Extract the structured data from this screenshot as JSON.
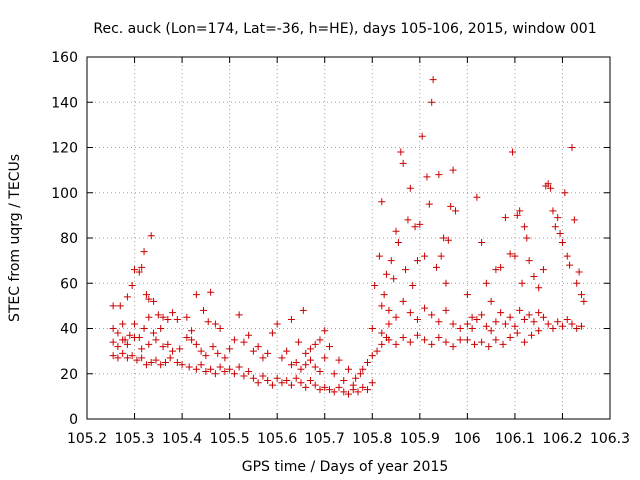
{
  "chart_data": {
    "type": "scatter",
    "title": "Rec. auck (Lon=174, Lat=-36, h=HE), days 105-106, 2015, window 001",
    "xlabel": "GPS time / Days of year 2015",
    "ylabel": "STEC from uqrg / TECUs",
    "xlim": [
      105.2,
      106.3
    ],
    "ylim": [
      0,
      160
    ],
    "xticks": [
      105.2,
      105.3,
      105.4,
      105.5,
      105.6,
      105.7,
      105.8,
      105.9,
      106.0,
      106.1,
      106.2,
      106.3
    ],
    "xtick_labels": [
      "105.2",
      "105.3",
      "105.4",
      "105.5",
      "105.6",
      "105.7",
      "105.8",
      "105.9",
      "106",
      "106.1",
      "106.2",
      "106.3"
    ],
    "yticks": [
      0,
      20,
      40,
      60,
      80,
      100,
      120,
      140,
      160
    ],
    "ytick_labels": [
      "0",
      "20",
      "40",
      "60",
      "80",
      "100",
      "120",
      "140",
      "160"
    ],
    "grid": true,
    "marker": "+",
    "marker_color": "#cc0000",
    "series": [
      {
        "points": [
          [
            105.255,
            50
          ],
          [
            105.27,
            50
          ],
          [
            105.285,
            54
          ],
          [
            105.295,
            59
          ],
          [
            105.3,
            66
          ],
          [
            105.31,
            65
          ],
          [
            105.315,
            67
          ],
          [
            105.32,
            74
          ],
          [
            105.325,
            55
          ],
          [
            105.33,
            53
          ],
          [
            105.335,
            81
          ],
          [
            105.34,
            52
          ],
          [
            105.35,
            46
          ],
          [
            105.36,
            45
          ],
          [
            105.255,
            40
          ],
          [
            105.265,
            38
          ],
          [
            105.275,
            42
          ],
          [
            105.28,
            35
          ],
          [
            105.29,
            37
          ],
          [
            105.3,
            42
          ],
          [
            105.31,
            36
          ],
          [
            105.32,
            40
          ],
          [
            105.33,
            45
          ],
          [
            105.34,
            38
          ],
          [
            105.355,
            40
          ],
          [
            105.37,
            44
          ],
          [
            105.38,
            47
          ],
          [
            105.39,
            44
          ],
          [
            105.255,
            34
          ],
          [
            105.265,
            32
          ],
          [
            105.275,
            35
          ],
          [
            105.285,
            33
          ],
          [
            105.3,
            36
          ],
          [
            105.315,
            31
          ],
          [
            105.33,
            33
          ],
          [
            105.345,
            35
          ],
          [
            105.36,
            32
          ],
          [
            105.37,
            33
          ],
          [
            105.38,
            30
          ],
          [
            105.395,
            31
          ],
          [
            105.41,
            36
          ],
          [
            105.42,
            39
          ],
          [
            105.255,
            28
          ],
          [
            105.265,
            27
          ],
          [
            105.275,
            29
          ],
          [
            105.285,
            27
          ],
          [
            105.295,
            28
          ],
          [
            105.305,
            26
          ],
          [
            105.315,
            27
          ],
          [
            105.325,
            24
          ],
          [
            105.335,
            25
          ],
          [
            105.345,
            26
          ],
          [
            105.355,
            24
          ],
          [
            105.365,
            25
          ],
          [
            105.375,
            27
          ],
          [
            105.39,
            25
          ],
          [
            105.4,
            24
          ],
          [
            105.415,
            23
          ],
          [
            105.43,
            22
          ],
          [
            105.44,
            24
          ],
          [
            105.45,
            21
          ],
          [
            105.46,
            22
          ],
          [
            105.47,
            20
          ],
          [
            105.41,
            45
          ],
          [
            105.43,
            55
          ],
          [
            105.445,
            48
          ],
          [
            105.455,
            43
          ],
          [
            105.46,
            56
          ],
          [
            105.47,
            42
          ],
          [
            105.48,
            40
          ],
          [
            105.42,
            35
          ],
          [
            105.43,
            33
          ],
          [
            105.44,
            30
          ],
          [
            105.45,
            28
          ],
          [
            105.465,
            32
          ],
          [
            105.475,
            29
          ],
          [
            105.49,
            27
          ],
          [
            105.48,
            23
          ],
          [
            105.49,
            21
          ],
          [
            105.5,
            22
          ],
          [
            105.51,
            20
          ],
          [
            105.52,
            23
          ],
          [
            105.53,
            19
          ],
          [
            105.54,
            21
          ],
          [
            105.5,
            31
          ],
          [
            105.51,
            35
          ],
          [
            105.52,
            46
          ],
          [
            105.53,
            34
          ],
          [
            105.54,
            37
          ],
          [
            105.55,
            30
          ],
          [
            105.56,
            32
          ],
          [
            105.55,
            18
          ],
          [
            105.56,
            16
          ],
          [
            105.57,
            19
          ],
          [
            105.58,
            17
          ],
          [
            105.59,
            15
          ],
          [
            105.6,
            18
          ],
          [
            105.61,
            16
          ],
          [
            105.57,
            27
          ],
          [
            105.58,
            29
          ],
          [
            105.59,
            38
          ],
          [
            105.6,
            42
          ],
          [
            105.61,
            27
          ],
          [
            105.62,
            30
          ],
          [
            105.63,
            24
          ],
          [
            105.62,
            17
          ],
          [
            105.63,
            15
          ],
          [
            105.64,
            18
          ],
          [
            105.65,
            16
          ],
          [
            105.66,
            14
          ],
          [
            105.67,
            17
          ],
          [
            105.68,
            15
          ],
          [
            105.63,
            44
          ],
          [
            105.645,
            34
          ],
          [
            105.655,
            48
          ],
          [
            105.66,
            29
          ],
          [
            105.67,
            31
          ],
          [
            105.68,
            33
          ],
          [
            105.69,
            35
          ],
          [
            105.64,
            25
          ],
          [
            105.65,
            22
          ],
          [
            105.66,
            24
          ],
          [
            105.67,
            26
          ],
          [
            105.68,
            23
          ],
          [
            105.69,
            21
          ],
          [
            105.7,
            27
          ],
          [
            105.7,
            39
          ],
          [
            105.71,
            32
          ],
          [
            105.72,
            20
          ],
          [
            105.73,
            26
          ],
          [
            105.74,
            17
          ],
          [
            105.75,
            22
          ],
          [
            105.76,
            15
          ],
          [
            105.69,
            13
          ],
          [
            105.7,
            14
          ],
          [
            105.71,
            13
          ],
          [
            105.72,
            12
          ],
          [
            105.73,
            14
          ],
          [
            105.74,
            12
          ],
          [
            105.75,
            11
          ],
          [
            105.76,
            13
          ],
          [
            105.77,
            12
          ],
          [
            105.78,
            14
          ],
          [
            105.79,
            13
          ],
          [
            105.8,
            16
          ],
          [
            105.765,
            18
          ],
          [
            105.775,
            20
          ],
          [
            105.78,
            22
          ],
          [
            105.79,
            25
          ],
          [
            105.8,
            28
          ],
          [
            105.81,
            30
          ],
          [
            105.82,
            33
          ],
          [
            105.83,
            36
          ],
          [
            105.8,
            40
          ],
          [
            105.805,
            59
          ],
          [
            105.815,
            72
          ],
          [
            105.82,
            96
          ],
          [
            105.825,
            55
          ],
          [
            105.83,
            64
          ],
          [
            105.835,
            42
          ],
          [
            105.84,
            70
          ],
          [
            105.845,
            62
          ],
          [
            105.85,
            83
          ],
          [
            105.855,
            78
          ],
          [
            105.86,
            118
          ],
          [
            105.865,
            113
          ],
          [
            105.87,
            66
          ],
          [
            105.875,
            88
          ],
          [
            105.88,
            102
          ],
          [
            105.885,
            59
          ],
          [
            105.89,
            85
          ],
          [
            105.895,
            70
          ],
          [
            105.9,
            86
          ],
          [
            105.905,
            125
          ],
          [
            105.91,
            72
          ],
          [
            105.915,
            107
          ],
          [
            105.92,
            95
          ],
          [
            105.925,
            140
          ],
          [
            105.928,
            150
          ],
          [
            105.935,
            67
          ],
          [
            105.94,
            108
          ],
          [
            105.945,
            72
          ],
          [
            105.95,
            80
          ],
          [
            105.955,
            60
          ],
          [
            105.96,
            79
          ],
          [
            105.965,
            94
          ],
          [
            105.97,
            110
          ],
          [
            105.975,
            92
          ],
          [
            105.82,
            50
          ],
          [
            105.835,
            48
          ],
          [
            105.85,
            45
          ],
          [
            105.865,
            52
          ],
          [
            105.88,
            47
          ],
          [
            105.895,
            44
          ],
          [
            105.91,
            49
          ],
          [
            105.925,
            46
          ],
          [
            105.94,
            43
          ],
          [
            105.955,
            48
          ],
          [
            105.97,
            42
          ],
          [
            105.985,
            40
          ],
          [
            105.82,
            38
          ],
          [
            105.835,
            35
          ],
          [
            105.85,
            33
          ],
          [
            105.865,
            36
          ],
          [
            105.88,
            34
          ],
          [
            105.895,
            37
          ],
          [
            105.91,
            35
          ],
          [
            105.925,
            33
          ],
          [
            105.94,
            36
          ],
          [
            105.955,
            34
          ],
          [
            105.97,
            32
          ],
          [
            105.985,
            35
          ],
          [
            106.0,
            55
          ],
          [
            106.01,
            45
          ],
          [
            106.02,
            98
          ],
          [
            106.03,
            78
          ],
          [
            106.04,
            60
          ],
          [
            106.05,
            52
          ],
          [
            106.06,
            66
          ],
          [
            106.07,
            67
          ],
          [
            106.08,
            89
          ],
          [
            106.09,
            73
          ],
          [
            106.095,
            118
          ],
          [
            106.1,
            72
          ],
          [
            106.105,
            90
          ],
          [
            106.11,
            92
          ],
          [
            106.115,
            60
          ],
          [
            106.12,
            85
          ],
          [
            106.125,
            80
          ],
          [
            106.13,
            70
          ],
          [
            106.14,
            63
          ],
          [
            106.15,
            58
          ],
          [
            106.16,
            66
          ],
          [
            106.165,
            103
          ],
          [
            106.17,
            104
          ],
          [
            106.175,
            102
          ],
          [
            106.18,
            92
          ],
          [
            106.185,
            85
          ],
          [
            106.19,
            89
          ],
          [
            106.195,
            82
          ],
          [
            106.2,
            78
          ],
          [
            106.205,
            100
          ],
          [
            106.21,
            72
          ],
          [
            106.215,
            68
          ],
          [
            106.22,
            120
          ],
          [
            106.225,
            88
          ],
          [
            106.23,
            60
          ],
          [
            106.235,
            65
          ],
          [
            106.24,
            55
          ],
          [
            106.245,
            52
          ],
          [
            106.0,
            42
          ],
          [
            106.01,
            40
          ],
          [
            106.02,
            44
          ],
          [
            106.03,
            46
          ],
          [
            106.04,
            41
          ],
          [
            106.05,
            39
          ],
          [
            106.06,
            43
          ],
          [
            106.07,
            47
          ],
          [
            106.08,
            42
          ],
          [
            106.09,
            45
          ],
          [
            106.1,
            41
          ],
          [
            106.11,
            48
          ],
          [
            106.12,
            44
          ],
          [
            106.13,
            46
          ],
          [
            106.14,
            43
          ],
          [
            106.15,
            47
          ],
          [
            106.16,
            45
          ],
          [
            106.17,
            42
          ],
          [
            106.18,
            40
          ],
          [
            106.19,
            43
          ],
          [
            106.2,
            41
          ],
          [
            106.21,
            44
          ],
          [
            106.22,
            42
          ],
          [
            106.23,
            40
          ],
          [
            106.24,
            41
          ],
          [
            106.0,
            35
          ],
          [
            106.015,
            33
          ],
          [
            106.03,
            34
          ],
          [
            106.045,
            32
          ],
          [
            106.06,
            35
          ],
          [
            106.075,
            33
          ],
          [
            106.09,
            36
          ],
          [
            106.105,
            38
          ],
          [
            106.12,
            34
          ],
          [
            106.135,
            37
          ],
          [
            106.15,
            39
          ]
        ]
      }
    ]
  }
}
